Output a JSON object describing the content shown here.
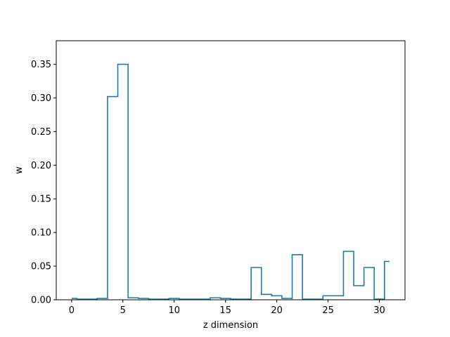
{
  "chart_data": {
    "type": "line",
    "style": "step",
    "xlabel": "z dimension",
    "ylabel": "w",
    "xlim": [
      -1.5,
      32.5
    ],
    "ylim": [
      0,
      0.385
    ],
    "xticks": [
      0,
      5,
      10,
      15,
      20,
      25,
      30
    ],
    "yticks": [
      0.0,
      0.05,
      0.1,
      0.15,
      0.2,
      0.25,
      0.3,
      0.35
    ],
    "ytick_labels": [
      "0.00",
      "0.05",
      "0.10",
      "0.15",
      "0.20",
      "0.25",
      "0.30",
      "0.35"
    ],
    "grid": false,
    "line_color": "#1f77b4",
    "series": [
      {
        "x": [
          0,
          1,
          2,
          3,
          4,
          5,
          6,
          7,
          8,
          9,
          10,
          11,
          12,
          13,
          14,
          15,
          16,
          17,
          18,
          19,
          20,
          21,
          22,
          23,
          24,
          25,
          26,
          27,
          28,
          29,
          30,
          31
        ],
        "values": [
          0.002,
          0.001,
          0.001,
          0.002,
          0.302,
          0.35,
          0.003,
          0.002,
          0.001,
          0.001,
          0.002,
          0.001,
          0.001,
          0.001,
          0.003,
          0.002,
          0.001,
          0.001,
          0.048,
          0.008,
          0.006,
          0.002,
          0.067,
          0.001,
          0.001,
          0.006,
          0.006,
          0.072,
          0.021,
          0.048,
          0.001,
          0.057
        ]
      }
    ]
  }
}
